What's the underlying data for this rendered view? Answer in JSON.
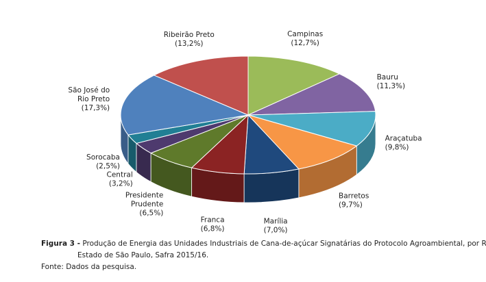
{
  "chart_data": {
    "type": "pie",
    "slices": [
      {
        "label": "Campinas",
        "pct_text": "(12,7%)",
        "value": 12.7,
        "color": "#9BBB59"
      },
      {
        "label": "Bauru",
        "pct_text": "(11,3%)",
        "value": 11.3,
        "color": "#8064A2"
      },
      {
        "label": "Araçatuba",
        "pct_text": "(9,8%)",
        "value": 9.8,
        "color": "#4BACC6"
      },
      {
        "label": "Barretos",
        "pct_text": "(9,7%)",
        "value": 9.7,
        "color": "#F79646"
      },
      {
        "label": "Marília",
        "pct_text": "(7,0%)",
        "value": 7.0,
        "color": "#1F497D"
      },
      {
        "label": "Franca",
        "pct_text": "(6,8%)",
        "value": 6.8,
        "color": "#8B2323"
      },
      {
        "label": "Presidente Prudente",
        "pct_text": "(6,5%)",
        "value": 6.5,
        "color": "#5F7A2B"
      },
      {
        "label": "Central",
        "pct_text": "(3,2%)",
        "value": 3.2,
        "color": "#4E3A6E"
      },
      {
        "label": "Sorocaba",
        "pct_text": "(2,5%)",
        "value": 2.5,
        "color": "#217F94"
      },
      {
        "label": "São José do Rio Preto",
        "pct_text": "(17,3%)",
        "value": 17.3,
        "color": "#4F81BD"
      },
      {
        "label": "Ribeirão Preto",
        "pct_text": "(13,2%)",
        "value": 13.2,
        "color": "#C0504D"
      }
    ]
  },
  "caption": {
    "figure_label": "Figura 3 -",
    "line1": " Produção de Energia das Unidades Industriais de Cana-de-açúcar Signatárias do Protocolo Agroambiental, por RA,",
    "line2": "Estado de São Paulo, Safra 2015/16.",
    "source": "Fonte: Dados da pesquisa."
  }
}
